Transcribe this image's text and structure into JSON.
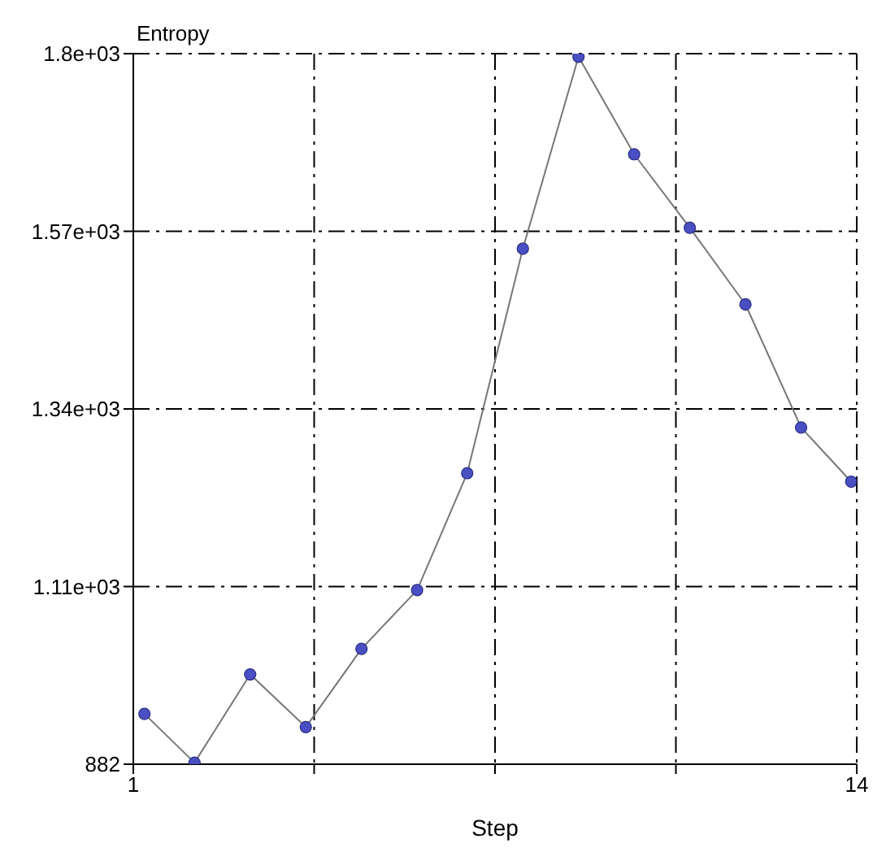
{
  "chart_data": {
    "type": "line",
    "xlabel": "Step",
    "ylabel": "Entropy",
    "x": [
      1.2,
      2.1,
      3.1,
      4.1,
      5.1,
      6.1,
      7.0,
      8.0,
      9.0,
      10.0,
      11.0,
      12.0,
      13.0,
      13.9
    ],
    "series": [
      {
        "color": "#4a4fc4",
        "values": [
          947,
          884,
          998,
          930,
          1031,
          1107,
          1258,
          1548,
          1796,
          1670,
          1575,
          1476,
          1317,
          1247
        ]
      }
    ],
    "xlim": [
      1,
      14
    ],
    "xticks": [
      1,
      {
        "value": 4.25,
        "label": null
      },
      {
        "value": 7.5,
        "label": null
      },
      {
        "value": 10.75,
        "label": null
      },
      14
    ],
    "ylim": [
      882,
      1800
    ],
    "yticks": [
      882,
      {
        "value": 1111.5,
        "label": "1.11e+03"
      },
      {
        "value": 1341,
        "label": "1.34e+03"
      },
      {
        "value": 1570.5,
        "label": "1.57e+03"
      },
      {
        "value": 1800,
        "label": "1.8e+03"
      }
    ],
    "grid": true,
    "marker": "circle",
    "line_style": "solid"
  }
}
